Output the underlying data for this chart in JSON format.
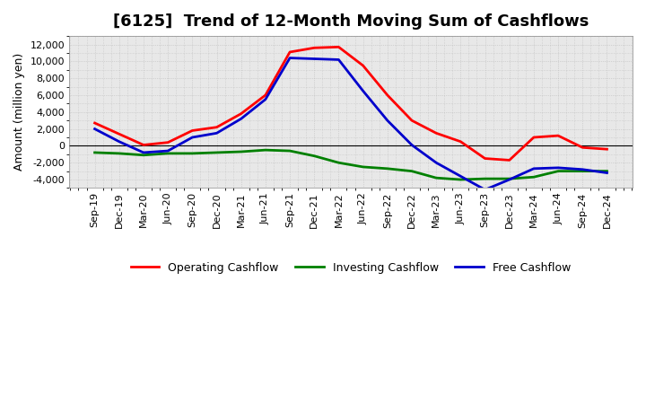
{
  "title": "[6125]  Trend of 12-Month Moving Sum of Cashflows",
  "ylabel": "Amount (million yen)",
  "ylim": [
    -5000,
    13000
  ],
  "yticks": [
    -4000,
    -2000,
    0,
    2000,
    4000,
    6000,
    8000,
    10000,
    12000
  ],
  "labels": [
    "Sep-19",
    "Dec-19",
    "Mar-20",
    "Jun-20",
    "Sep-20",
    "Dec-20",
    "Mar-21",
    "Jun-21",
    "Sep-21",
    "Dec-21",
    "Mar-22",
    "Jun-22",
    "Sep-22",
    "Dec-22",
    "Mar-23",
    "Jun-23",
    "Sep-23",
    "Dec-23",
    "Mar-24",
    "Jun-24",
    "Sep-24",
    "Dec-24"
  ],
  "operating": [
    2700,
    1400,
    100,
    400,
    1800,
    2200,
    3800,
    6000,
    11100,
    11600,
    11700,
    9500,
    6000,
    3000,
    1500,
    500,
    -1500,
    -1700,
    1000,
    1200,
    -200,
    -400
  ],
  "investing": [
    -800,
    -900,
    -1100,
    -900,
    -900,
    -800,
    -700,
    -500,
    -600,
    -1200,
    -2000,
    -2500,
    -2700,
    -3000,
    -3800,
    -4000,
    -3900,
    -3900,
    -3700,
    -3000,
    -3000,
    -3000
  ],
  "free": [
    2000,
    500,
    -800,
    -600,
    1000,
    1500,
    3200,
    5500,
    10400,
    10300,
    10200,
    6500,
    3000,
    100,
    -2000,
    -3600,
    -5200,
    -4000,
    -2700,
    -2600,
    -2800,
    -3200
  ],
  "operating_color": "#ff0000",
  "investing_color": "#008000",
  "free_color": "#0000cc",
  "bg_color": "#ffffff",
  "plot_bg_color": "#e8e8e8",
  "grid_color": "#bbbbbb",
  "linewidth": 2.0,
  "title_fontsize": 13,
  "axis_label_fontsize": 9,
  "tick_fontsize": 8,
  "legend_fontsize": 9
}
